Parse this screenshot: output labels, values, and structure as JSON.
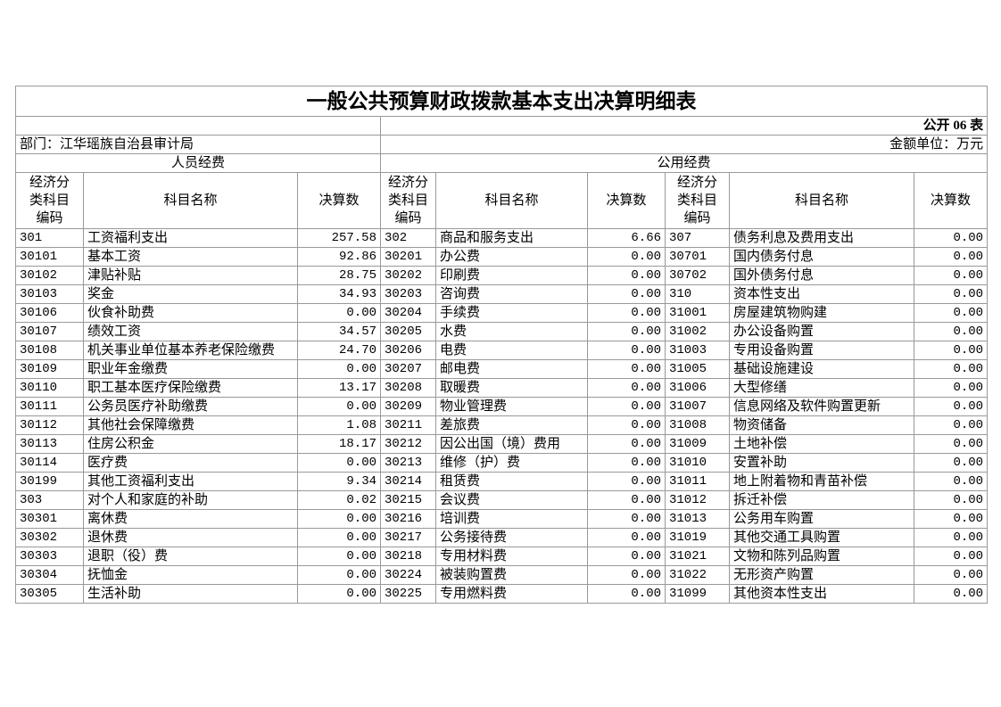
{
  "title": "一般公共预算财政拨款基本支出决算明细表",
  "form_no": "公开 06 表",
  "department": "部门：江华瑶族自治县审计局",
  "unit": "金额单位：万元",
  "groups": [
    "人员经费",
    "公用经费"
  ],
  "columns": [
    "经济分类科目编码",
    "科目名称",
    "决算数",
    "经济分类科目编码",
    "科目名称",
    "决算数",
    "经济分类科目编码",
    "科目名称",
    "决算数"
  ],
  "rows": [
    [
      "301",
      "工资福利支出",
      "257.58",
      "302",
      "商品和服务支出",
      "6.66",
      "307",
      "债务利息及费用支出",
      "0.00"
    ],
    [
      "30101",
      "基本工资",
      "92.86",
      "30201",
      "办公费",
      "0.00",
      "30701",
      "国内债务付息",
      "0.00"
    ],
    [
      "30102",
      "津贴补贴",
      "28.75",
      "30202",
      "印刷费",
      "0.00",
      "30702",
      "国外债务付息",
      "0.00"
    ],
    [
      "30103",
      "奖金",
      "34.93",
      "30203",
      "咨询费",
      "0.00",
      "310",
      "资本性支出",
      "0.00"
    ],
    [
      "30106",
      "伙食补助费",
      "0.00",
      "30204",
      "手续费",
      "0.00",
      "31001",
      "房屋建筑物购建",
      "0.00"
    ],
    [
      "30107",
      "绩效工资",
      "34.57",
      "30205",
      "水费",
      "0.00",
      "31002",
      "办公设备购置",
      "0.00"
    ],
    [
      "30108",
      "机关事业单位基本养老保险缴费",
      "24.70",
      "30206",
      "电费",
      "0.00",
      "31003",
      "专用设备购置",
      "0.00"
    ],
    [
      "30109",
      "职业年金缴费",
      "0.00",
      "30207",
      "邮电费",
      "0.00",
      "31005",
      "基础设施建设",
      "0.00"
    ],
    [
      "30110",
      "职工基本医疗保险缴费",
      "13.17",
      "30208",
      "取暖费",
      "0.00",
      "31006",
      "大型修缮",
      "0.00"
    ],
    [
      "30111",
      "公务员医疗补助缴费",
      "0.00",
      "30209",
      "物业管理费",
      "0.00",
      "31007",
      "信息网络及软件购置更新",
      "0.00"
    ],
    [
      "30112",
      "其他社会保障缴费",
      "1.08",
      "30211",
      "差旅费",
      "0.00",
      "31008",
      "物资储备",
      "0.00"
    ],
    [
      "30113",
      "住房公积金",
      "18.17",
      "30212",
      "因公出国（境）费用",
      "0.00",
      "31009",
      "土地补偿",
      "0.00"
    ],
    [
      "30114",
      "医疗费",
      "0.00",
      "30213",
      "维修（护）费",
      "0.00",
      "31010",
      "安置补助",
      "0.00"
    ],
    [
      "30199",
      "其他工资福利支出",
      "9.34",
      "30214",
      "租赁费",
      "0.00",
      "31011",
      "地上附着物和青苗补偿",
      "0.00"
    ],
    [
      "303",
      "对个人和家庭的补助",
      "0.02",
      "30215",
      "会议费",
      "0.00",
      "31012",
      "拆迁补偿",
      "0.00"
    ],
    [
      "30301",
      "离休费",
      "0.00",
      "30216",
      "培训费",
      "0.00",
      "31013",
      "公务用车购置",
      "0.00"
    ],
    [
      "30302",
      "退休费",
      "0.00",
      "30217",
      "公务接待费",
      "0.00",
      "31019",
      "其他交通工具购置",
      "0.00"
    ],
    [
      "30303",
      "退职（役）费",
      "0.00",
      "30218",
      "专用材料费",
      "0.00",
      "31021",
      "文物和陈列品购置",
      "0.00"
    ],
    [
      "30304",
      "抚恤金",
      "0.00",
      "30224",
      "被装购置费",
      "0.00",
      "31022",
      "无形资产购置",
      "0.00"
    ],
    [
      "30305",
      "生活补助",
      "0.00",
      "30225",
      "专用燃料费",
      "0.00",
      "31099",
      "其他资本性支出",
      "0.00"
    ]
  ]
}
